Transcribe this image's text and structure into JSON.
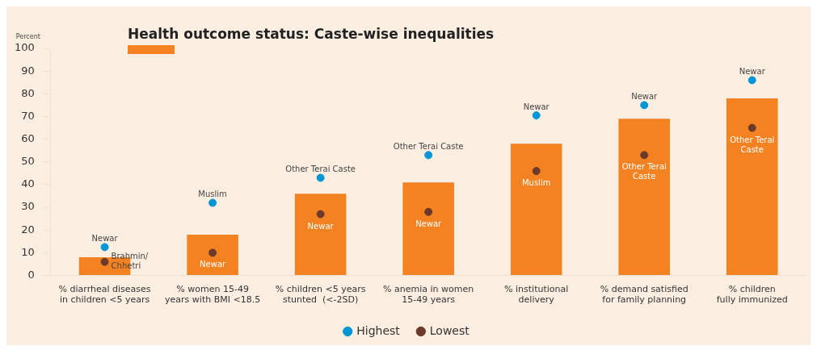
{
  "chart_data": {
    "type": "bar",
    "title": "Health outcome status: Caste-wise inequalities",
    "ylabel": "Percent",
    "categories": [
      "% diarrheal diseases\nin children <5 years",
      "% women 15-49\nyears with BMI <18.5",
      "% children <5 years\nstunted  (<-2SD)",
      "% anemia in women\n15-49 years",
      "% institutional\ndelivery",
      "% demand satisfied\nfor family planning",
      "% children\nfully immunized"
    ],
    "series": [
      {
        "color": "#f58220",
        "values": [
          8,
          18,
          36,
          41,
          58,
          69,
          78
        ]
      },
      {
        "type": "scatter",
        "name": "Highest",
        "color": "#0096d6",
        "values": [
          12.5,
          32,
          43,
          53,
          70.5,
          75,
          86
        ]
      },
      {
        "type": "scatter",
        "name": "Lowest",
        "color": "#6b3a2a",
        "values": [
          6,
          10,
          27,
          28,
          46,
          53,
          65
        ]
      }
    ],
    "ylim": [
      0,
      100
    ],
    "yticks": [
      0,
      10,
      20,
      30,
      40,
      50,
      60,
      70,
      80,
      90,
      100
    ],
    "grid": false,
    "legend": "bottom",
    "marker": "circle",
    "annotations": [
      {
        "text": "Newar",
        "x": "% diarrheal diseases\nin children <5 years",
        "y": 12.5
      },
      {
        "text": "Muslim",
        "x": "% women 15-49\nyears with BMI <18.5",
        "y": 32
      },
      {
        "text": "Other Terai Caste",
        "x": "% children <5 years\nstunted  (<-2SD)",
        "y": 43
      },
      {
        "text": "Other Terai Caste",
        "x": "% anemia in women\n15-49 years",
        "y": 53
      },
      {
        "text": "Newar",
        "x": "% institutional\ndelivery",
        "y": 70.5
      },
      {
        "text": "Newar",
        "x": "% demand satisfied\nfor family planning",
        "y": 75
      },
      {
        "text": "Newar",
        "x": "% children\nfully immunized",
        "y": 86
      },
      {
        "text": "Brahmin/\nChhetri",
        "x": "% diarrheal diseases\nin children <5 years",
        "y": 6
      },
      {
        "text": "Newar",
        "x": "% women 15-49\nyears with BMI <18.5",
        "y": 10
      },
      {
        "text": "Newar",
        "x": "% children <5 years\nstunted  (<-2SD)",
        "y": 27
      },
      {
        "text": "Newar",
        "x": "% anemia in women\n15-49 years",
        "y": 28
      },
      {
        "text": "Muslim",
        "x": "% institutional\ndelivery",
        "y": 46
      },
      {
        "text": "Other Terai\nCaste",
        "x": "% demand satisfied\nfor family planning",
        "y": 53
      },
      {
        "text": "Other Terai\nCaste",
        "x": "% children\nfully immunized",
        "y": 65
      }
    ]
  }
}
